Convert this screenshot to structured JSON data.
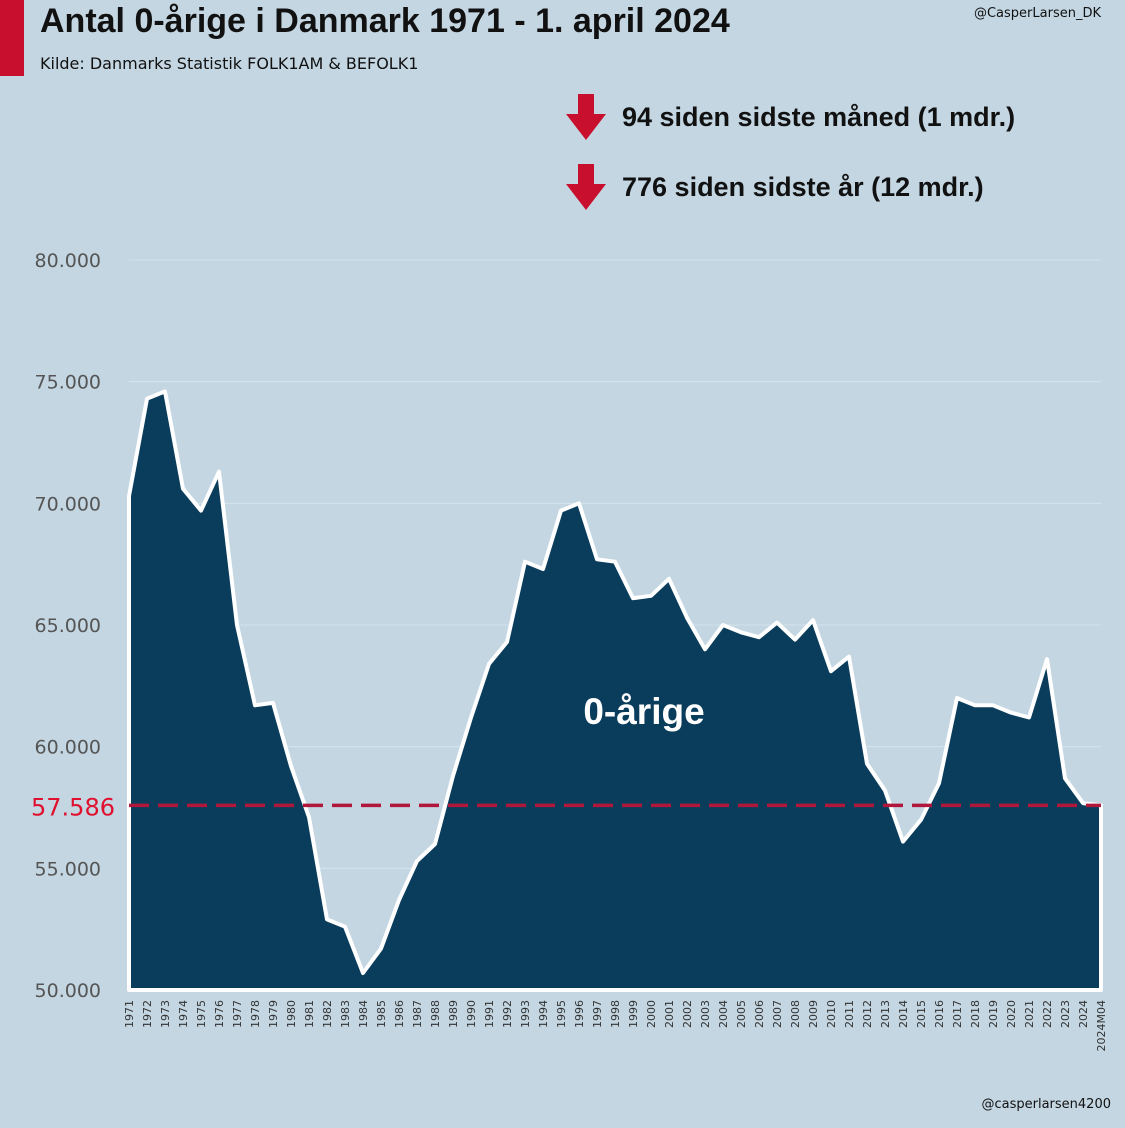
{
  "header": {
    "title": "Antal 0-årige i Danmark 1971 - 1. april 2024",
    "subtitle": "Kilde: Danmarks Statistik FOLK1AM & BEFOLK1",
    "handle_top": "@CasperLarsen_DK",
    "handle_bottom": "@casperlarsen4200"
  },
  "stats": [
    {
      "icon": "arrow-down-icon",
      "text": "94 siden sidste måned (1 mdr.)"
    },
    {
      "icon": "arrow-down-icon",
      "text": "776 siden sidste år (12 mdr.)"
    }
  ],
  "colors": {
    "background": "#c3d6e2",
    "area_fill": "#0a3d5c",
    "line": "#ffffff",
    "accent": "#c8102e",
    "reference_line": "#b0173a"
  },
  "chart_data": {
    "type": "area",
    "title": "Antal 0-årige i Danmark 1971 - 1. april 2024",
    "xlabel": "",
    "ylabel": "",
    "ylim": [
      50000,
      80000
    ],
    "yticks": [
      "50.000",
      "55.000",
      "60.000",
      "65.000",
      "70.000",
      "75.000",
      "80.000"
    ],
    "ytick_values": [
      50000,
      55000,
      60000,
      65000,
      70000,
      75000,
      80000
    ],
    "grid": true,
    "area_label": "0-årige",
    "reference_line": {
      "value": 57586,
      "label": "57.586"
    },
    "categories": [
      "1971",
      "1972",
      "1973",
      "1974",
      "1975",
      "1976",
      "1977",
      "1978",
      "1979",
      "1980",
      "1981",
      "1982",
      "1983",
      "1984",
      "1985",
      "1986",
      "1987",
      "1988",
      "1989",
      "1990",
      "1991",
      "1992",
      "1993",
      "1994",
      "1995",
      "1996",
      "1997",
      "1998",
      "1999",
      "2000",
      "2001",
      "2002",
      "2003",
      "2004",
      "2005",
      "2006",
      "2007",
      "2008",
      "2009",
      "2010",
      "2011",
      "2012",
      "2013",
      "2014",
      "2015",
      "2016",
      "2017",
      "2018",
      "2019",
      "2020",
      "2021",
      "2022",
      "2023",
      "2024",
      "2024M04"
    ],
    "values": [
      70300,
      74300,
      74600,
      70600,
      69700,
      71300,
      65000,
      61700,
      61800,
      59200,
      57100,
      52900,
      52600,
      50700,
      51700,
      53700,
      55300,
      56000,
      58800,
      61200,
      63400,
      64300,
      67600,
      67300,
      69700,
      70000,
      67700,
      67600,
      66100,
      66200,
      66900,
      65300,
      64000,
      65000,
      64700,
      64500,
      65100,
      64400,
      65200,
      63100,
      63700,
      59300,
      58200,
      56100,
      57000,
      58500,
      62000,
      61700,
      61700,
      61400,
      61200,
      63600,
      58700,
      57680,
      57586
    ]
  }
}
